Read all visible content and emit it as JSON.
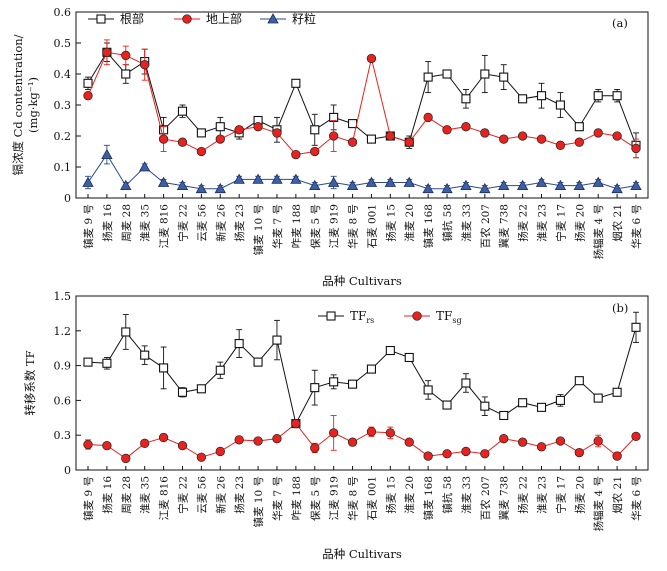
{
  "chart_data": [
    {
      "type": "line",
      "panel_label": "(a)",
      "ylabel_cn": "镉浓度 Cd contentration/",
      "ylabel_unit": "(mg·kg⁻¹)",
      "xlabel": "品种  Cultivars",
      "ylim": [
        0,
        0.6
      ],
      "yticks": [
        "0",
        "0.1",
        "0.2",
        "0.3",
        "0.4",
        "0.5",
        "0.6"
      ],
      "categories": [
        "镇麦 9 号",
        "扬麦 16",
        "周麦 28",
        "淮麦 35",
        "江麦 816",
        "宁麦 22",
        "云麦 56",
        "新麦 26",
        "扬麦 23",
        "镇麦 10 号",
        "华麦 7 号",
        "咋麦 188",
        "保麦 5 号",
        "江麦 919",
        "华麦 8 号",
        "石麦 001",
        "扬麦 15",
        "淮麦 20",
        "镇麦 168",
        "镇抗 58",
        "淮麦 33",
        "百农 207",
        "冀麦 738",
        "扬麦 22",
        "淮麦 23",
        "宁麦 17",
        "扬麦 20",
        "扬辐麦 4 号",
        "烟农 21",
        "华麦 6 号"
      ],
      "series": [
        {
          "name": "根部",
          "marker": "square-open",
          "color": "#111111",
          "values": [
            0.37,
            0.47,
            0.4,
            0.44,
            0.22,
            0.28,
            0.21,
            0.23,
            0.21,
            0.25,
            0.22,
            0.37,
            0.22,
            0.26,
            0.24,
            0.19,
            0.2,
            0.18,
            0.39,
            0.4,
            0.32,
            0.4,
            0.39,
            0.32,
            0.33,
            0.3,
            0.23,
            0.33,
            0.33,
            0.17
          ],
          "errors": [
            0.02,
            0.03,
            0.03,
            0.04,
            0.04,
            0.02,
            0.01,
            0.03,
            0.02,
            0.01,
            0.04,
            0.01,
            0.05,
            0.04,
            0.01,
            0.01,
            0.01,
            0.02,
            0.05,
            0.01,
            0.03,
            0.06,
            0.04,
            0.01,
            0.04,
            0.04,
            0.01,
            0.02,
            0.02,
            0.04
          ]
        },
        {
          "name": "地上部",
          "marker": "circle-red",
          "color": "#e8221f",
          "values": [
            0.33,
            0.47,
            0.46,
            0.43,
            0.19,
            0.18,
            0.15,
            0.19,
            0.22,
            0.23,
            0.21,
            0.14,
            0.15,
            0.2,
            0.18,
            0.45,
            0.2,
            0.18,
            0.26,
            0.22,
            0.23,
            0.21,
            0.19,
            0.2,
            0.19,
            0.17,
            0.18,
            0.21,
            0.2,
            0.16
          ],
          "errors": [
            0.01,
            0.04,
            0.03,
            0.05,
            0.04,
            0.01,
            0.01,
            0.01,
            0.01,
            0.01,
            0.01,
            0.01,
            0.01,
            0.05,
            0.01,
            0.01,
            0.01,
            0.01,
            0.01,
            0.01,
            0.01,
            0.01,
            0.01,
            0.01,
            0.01,
            0.01,
            0.01,
            0.01,
            0.01,
            0.03
          ]
        },
        {
          "name": "籽粒",
          "marker": "triangle-blue",
          "color": "#2b4a8c",
          "values": [
            0.05,
            0.14,
            0.04,
            0.1,
            0.05,
            0.04,
            0.03,
            0.03,
            0.06,
            0.06,
            0.06,
            0.06,
            0.04,
            0.05,
            0.04,
            0.05,
            0.05,
            0.05,
            0.03,
            0.03,
            0.04,
            0.03,
            0.04,
            0.04,
            0.05,
            0.04,
            0.04,
            0.05,
            0.03,
            0.04
          ],
          "errors": [
            0.02,
            0.03,
            0.01,
            0.01,
            0.01,
            0.01,
            0.01,
            0.01,
            0.01,
            0.01,
            0.01,
            0.01,
            0.01,
            0.02,
            0.01,
            0.01,
            0.01,
            0.01,
            0.01,
            0.01,
            0.01,
            0.01,
            0.01,
            0.01,
            0.01,
            0.01,
            0.01,
            0.01,
            0.01,
            0.01
          ]
        }
      ],
      "legend_position": "top-left",
      "grid": false
    },
    {
      "type": "line",
      "panel_label": "(b)",
      "ylabel": "转移系数 TF",
      "xlabel": "品种  Cultivars",
      "ylim": [
        0,
        1.5
      ],
      "yticks": [
        "0",
        "0.3",
        "0.6",
        "0.9",
        "1.2",
        "1.5"
      ],
      "categories": [
        "镇麦 9 号",
        "扬麦 16",
        "周麦 28",
        "淮麦 35",
        "江麦 816",
        "宁麦 22",
        "云麦 56",
        "新麦 26",
        "扬麦 23",
        "镇麦 10 号",
        "华麦 7 号",
        "咋麦 188",
        "保麦 5 号",
        "江麦 919",
        "华麦 8 号",
        "石麦 001",
        "扬麦 15",
        "淮麦 20",
        "镇麦 168",
        "镇抗 58",
        "淮麦 33",
        "百农 207",
        "冀麦 738",
        "扬麦 22",
        "淮麦 23",
        "宁麦 17",
        "扬麦 20",
        "扬辐麦 4 号",
        "烟农 21",
        "华麦 6 号"
      ],
      "series": [
        {
          "name": "TF",
          "subscript": "rs",
          "marker": "square-open",
          "color": "#111111",
          "values": [
            0.93,
            0.92,
            1.19,
            0.99,
            0.88,
            0.67,
            0.7,
            0.86,
            1.09,
            0.93,
            1.12,
            0.4,
            0.71,
            0.76,
            0.74,
            0.87,
            1.03,
            0.97,
            0.69,
            0.56,
            0.75,
            0.55,
            0.47,
            0.58,
            0.54,
            0.6,
            0.77,
            0.62,
            0.67,
            1.23
          ],
          "errors": [
            0.01,
            0.05,
            0.15,
            0.08,
            0.18,
            0.04,
            0.01,
            0.07,
            0.12,
            0.01,
            0.17,
            0.01,
            0.15,
            0.06,
            0.01,
            0.01,
            0.02,
            0.01,
            0.08,
            0.01,
            0.08,
            0.08,
            0.01,
            0.01,
            0.02,
            0.05,
            0.01,
            0.01,
            0.01,
            0.13
          ]
        },
        {
          "name": "TF",
          "subscript": "sg",
          "marker": "circle-red",
          "color": "#e8221f",
          "values": [
            0.22,
            0.21,
            0.1,
            0.23,
            0.28,
            0.21,
            0.11,
            0.16,
            0.26,
            0.25,
            0.27,
            0.4,
            0.19,
            0.32,
            0.24,
            0.33,
            0.32,
            0.24,
            0.12,
            0.14,
            0.16,
            0.14,
            0.27,
            0.24,
            0.2,
            0.25,
            0.15,
            0.25,
            0.12,
            0.29
          ],
          "errors": [
            0.04,
            0.01,
            0.01,
            0.01,
            0.03,
            0.01,
            0.01,
            0.01,
            0.01,
            0.02,
            0.01,
            0.03,
            0.04,
            0.15,
            0.01,
            0.04,
            0.05,
            0.01,
            0.01,
            0.01,
            0.01,
            0.01,
            0.01,
            0.01,
            0.01,
            0.01,
            0.01,
            0.05,
            0.01,
            0.02
          ]
        }
      ],
      "legend_position": "top-center",
      "grid": false
    }
  ]
}
